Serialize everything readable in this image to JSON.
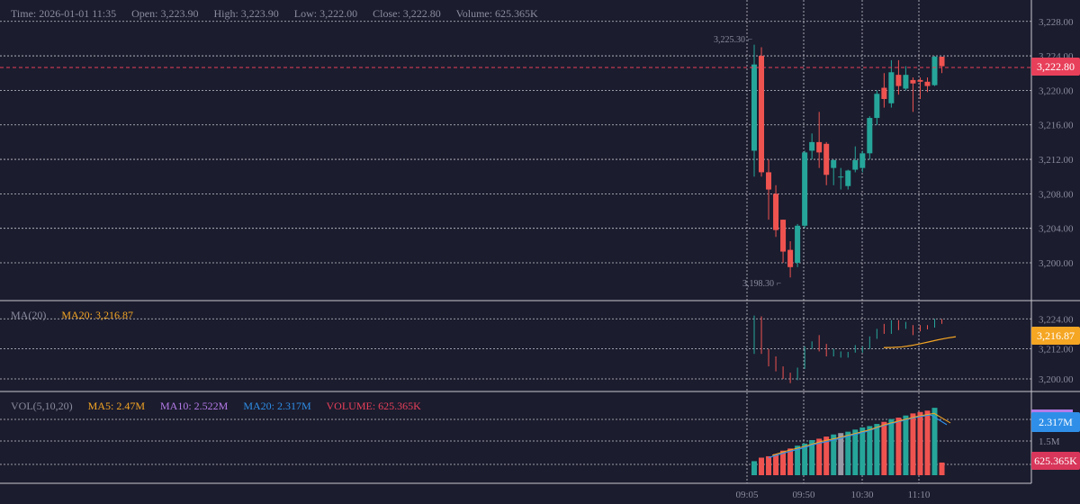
{
  "info_bar": {
    "time": "Time: 2026-01-01 11:35",
    "open": "Open: 3,223.90",
    "high": "High: 3,223.90",
    "low": "Low: 3,222.00",
    "close": "Close: 3,222.80",
    "volume": "Volume: 625.365K"
  },
  "ma_panel": {
    "name": "MA(20)",
    "value": "MA20: 3,216.87",
    "badge": "3,216.87",
    "ticks": [
      "3,224.00",
      "3,212.00",
      "3,200.00"
    ]
  },
  "vol_panel": {
    "name": "VOL(5,10,20)",
    "ma5": "MA5: 2.47M",
    "ma10": "MA10: 2.522M",
    "ma20": "MA20: 2.317M",
    "volume": "VOLUME: 625.365K",
    "badge_ma": "2.317M",
    "badge_vol": "625.365K",
    "tick": "1.5M"
  },
  "price_axis": {
    "ticks": [
      "3,228.00",
      "3,224.00",
      "3,220.00",
      "3,216.00",
      "3,212.00",
      "3,208.00",
      "3,204.00",
      "3,200.00"
    ],
    "last_price_badge": "3,222.80"
  },
  "time_axis": {
    "ticks": [
      "09:05",
      "09:50",
      "10:30",
      "11:10"
    ]
  },
  "annotations": {
    "high_label": "3,225.30",
    "low_label": "3,198.30"
  },
  "colors": {
    "background": "#1b1c2e",
    "up": "#26a69a",
    "down": "#ef5350",
    "ma20": "#f5a623",
    "ma10": "#b57be8",
    "ma20_vol": "#2f8fe8",
    "grid": "#c8c8d0",
    "text": "#8a8d9f"
  },
  "chart_data": {
    "type": "candlestick",
    "price_range": [
      3196,
      3229
    ],
    "candles": [
      {
        "o": 3213.0,
        "h": 3225.3,
        "l": 3210.0,
        "c": 3223.0
      },
      {
        "o": 3224.0,
        "h": 3225.0,
        "l": 3210.0,
        "c": 3210.5
      },
      {
        "o": 3210.5,
        "h": 3212.0,
        "l": 3205.0,
        "c": 3208.5
      },
      {
        "o": 3208.0,
        "h": 3209.0,
        "l": 3203.0,
        "c": 3203.8
      },
      {
        "o": 3205.0,
        "h": 3205.0,
        "l": 3200.0,
        "c": 3201.3
      },
      {
        "o": 3201.5,
        "h": 3202.5,
        "l": 3198.3,
        "c": 3199.5
      },
      {
        "o": 3200.0,
        "h": 3204.5,
        "l": 3199.5,
        "c": 3204.3
      },
      {
        "o": 3204.3,
        "h": 3213.0,
        "l": 3204.0,
        "c": 3212.8
      },
      {
        "o": 3213.0,
        "h": 3215.0,
        "l": 3212.0,
        "c": 3214.0
      },
      {
        "o": 3214.0,
        "h": 3217.5,
        "l": 3211.0,
        "c": 3212.8
      },
      {
        "o": 3213.8,
        "h": 3214.0,
        "l": 3209.0,
        "c": 3210.2
      },
      {
        "o": 3211.0,
        "h": 3212.0,
        "l": 3209.0,
        "c": 3211.9
      },
      {
        "o": 3210.0,
        "h": 3211.0,
        "l": 3208.5,
        "c": 3210.0
      },
      {
        "o": 3208.9,
        "h": 3210.8,
        "l": 3208.5,
        "c": 3210.7
      },
      {
        "o": 3210.8,
        "h": 3213.5,
        "l": 3210.5,
        "c": 3211.9
      },
      {
        "o": 3211.0,
        "h": 3213.0,
        "l": 3210.5,
        "c": 3212.7
      },
      {
        "o": 3212.7,
        "h": 3217.0,
        "l": 3212.0,
        "c": 3216.8
      },
      {
        "o": 3216.8,
        "h": 3220.0,
        "l": 3216.0,
        "c": 3219.6
      },
      {
        "o": 3220.3,
        "h": 3222.0,
        "l": 3218.0,
        "c": 3219.0
      },
      {
        "o": 3218.5,
        "h": 3223.5,
        "l": 3218.0,
        "c": 3222.1
      },
      {
        "o": 3221.8,
        "h": 3223.5,
        "l": 3219.5,
        "c": 3220.5
      },
      {
        "o": 3220.2,
        "h": 3222.8,
        "l": 3220.0,
        "c": 3221.8
      },
      {
        "o": 3221.2,
        "h": 3221.5,
        "l": 3217.5,
        "c": 3220.8
      },
      {
        "o": 3221.2,
        "h": 3221.5,
        "l": 3219.0,
        "c": 3221.0
      },
      {
        "o": 3221.0,
        "h": 3221.5,
        "l": 3219.8,
        "c": 3220.5
      },
      {
        "o": 3220.6,
        "h": 3224.0,
        "l": 3220.5,
        "c": 3223.9
      },
      {
        "o": 3223.9,
        "h": 3223.9,
        "l": 3222.0,
        "c": 3222.8
      }
    ],
    "ma20": [
      3212.5,
      3212.6,
      3212.8,
      3213.3,
      3214.0,
      3214.8,
      3215.6,
      3216.3,
      3216.87
    ],
    "volume_relative": [
      0.2,
      0.25,
      0.27,
      0.3,
      0.35,
      0.38,
      0.42,
      0.45,
      0.5,
      0.52,
      0.55,
      0.58,
      0.6,
      0.62,
      0.65,
      0.68,
      0.7,
      0.73,
      0.76,
      0.8,
      0.82,
      0.85,
      0.88,
      0.9,
      0.92,
      0.96,
      0.18
    ],
    "volume_ma_relative": [
      0.25,
      0.32,
      0.38,
      0.45,
      0.5,
      0.56,
      0.62,
      0.7,
      0.76,
      0.82,
      0.86,
      0.72
    ]
  }
}
